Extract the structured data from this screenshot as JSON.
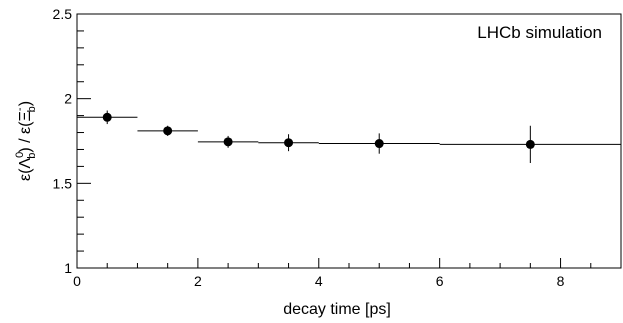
{
  "chart_data": {
    "type": "scatter",
    "annotation": "LHCb simulation",
    "xlabel": "decay time [ps]",
    "ylabel": {
      "prefix": "ε(Λ",
      "sup1": "0",
      "sub1": "b",
      "mid": ") / ε(Ξ",
      "sup2": "-",
      "sub2": "b",
      "suffix": ")"
    },
    "xlim": [
      0,
      9
    ],
    "ylim": [
      1,
      2.5
    ],
    "x_ticks": [
      0,
      2,
      4,
      6,
      8
    ],
    "x_tick_labels": [
      "0",
      "2",
      "4",
      "6",
      "8"
    ],
    "y_ticks": [
      1,
      1.5,
      2,
      2.5
    ],
    "y_tick_labels": [
      "1",
      "1.5",
      "2",
      "2.5"
    ],
    "grid": false,
    "legend": "none",
    "series": [
      {
        "points": [
          {
            "x": 0.5,
            "y": 1.89,
            "xerr_low": 0.5,
            "xerr_high": 0.5,
            "yerr": 0.04
          },
          {
            "x": 1.5,
            "y": 1.81,
            "xerr_low": 0.5,
            "xerr_high": 0.5,
            "yerr": 0.03
          },
          {
            "x": 2.5,
            "y": 1.745,
            "xerr_low": 0.5,
            "xerr_high": 0.5,
            "yerr": 0.035
          },
          {
            "x": 3.5,
            "y": 1.74,
            "xerr_low": 0.5,
            "xerr_high": 0.5,
            "yerr": 0.05
          },
          {
            "x": 5.0,
            "y": 1.735,
            "xerr_low": 1.0,
            "xerr_high": 1.0,
            "yerr": 0.06
          },
          {
            "x": 7.5,
            "y": 1.73,
            "xerr_low": 1.5,
            "xerr_high": 1.5,
            "yerr": 0.11
          }
        ]
      }
    ],
    "colors": {
      "marker": "#000000",
      "axis": "#000000",
      "background": "#ffffff"
    }
  }
}
